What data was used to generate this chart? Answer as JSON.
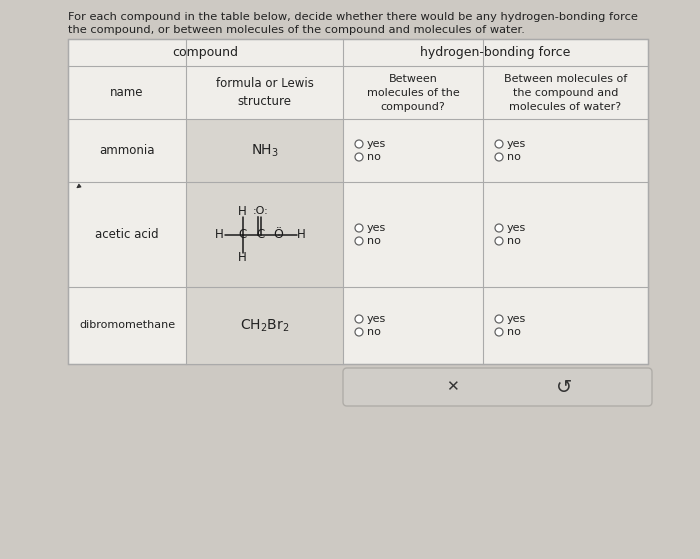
{
  "title_line1": "For each compound in the table below, decide whether there would be any hydrogen-bonding force",
  "title_line2": "the compound, or between molecules of the compound and molecules of water.",
  "header_compound": "compound",
  "header_hbf": "hydrogen-bonding force",
  "col1_header": "name",
  "col2_header": "formula or Lewis\nstructure",
  "col3_header": "Between\nmolecules of the\ncompound?",
  "col4_header": "Between molecules of\nthe compound and\nmolecules of water?",
  "row1_name": "ammonia",
  "row1_formula": "NH$_3$",
  "row2_name": "acetic acid",
  "row3_name": "dibromomethane",
  "row3_formula": "CH$_2$Br$_2$",
  "bg_outer": "#cdc9c3",
  "bg_table": "#f0eeea",
  "bg_formula_col": "#d8d5cf",
  "bg_button": "#d0cdc8",
  "border_color": "#aaaaaa",
  "text_color": "#222222",
  "radio_edge": "#666666"
}
